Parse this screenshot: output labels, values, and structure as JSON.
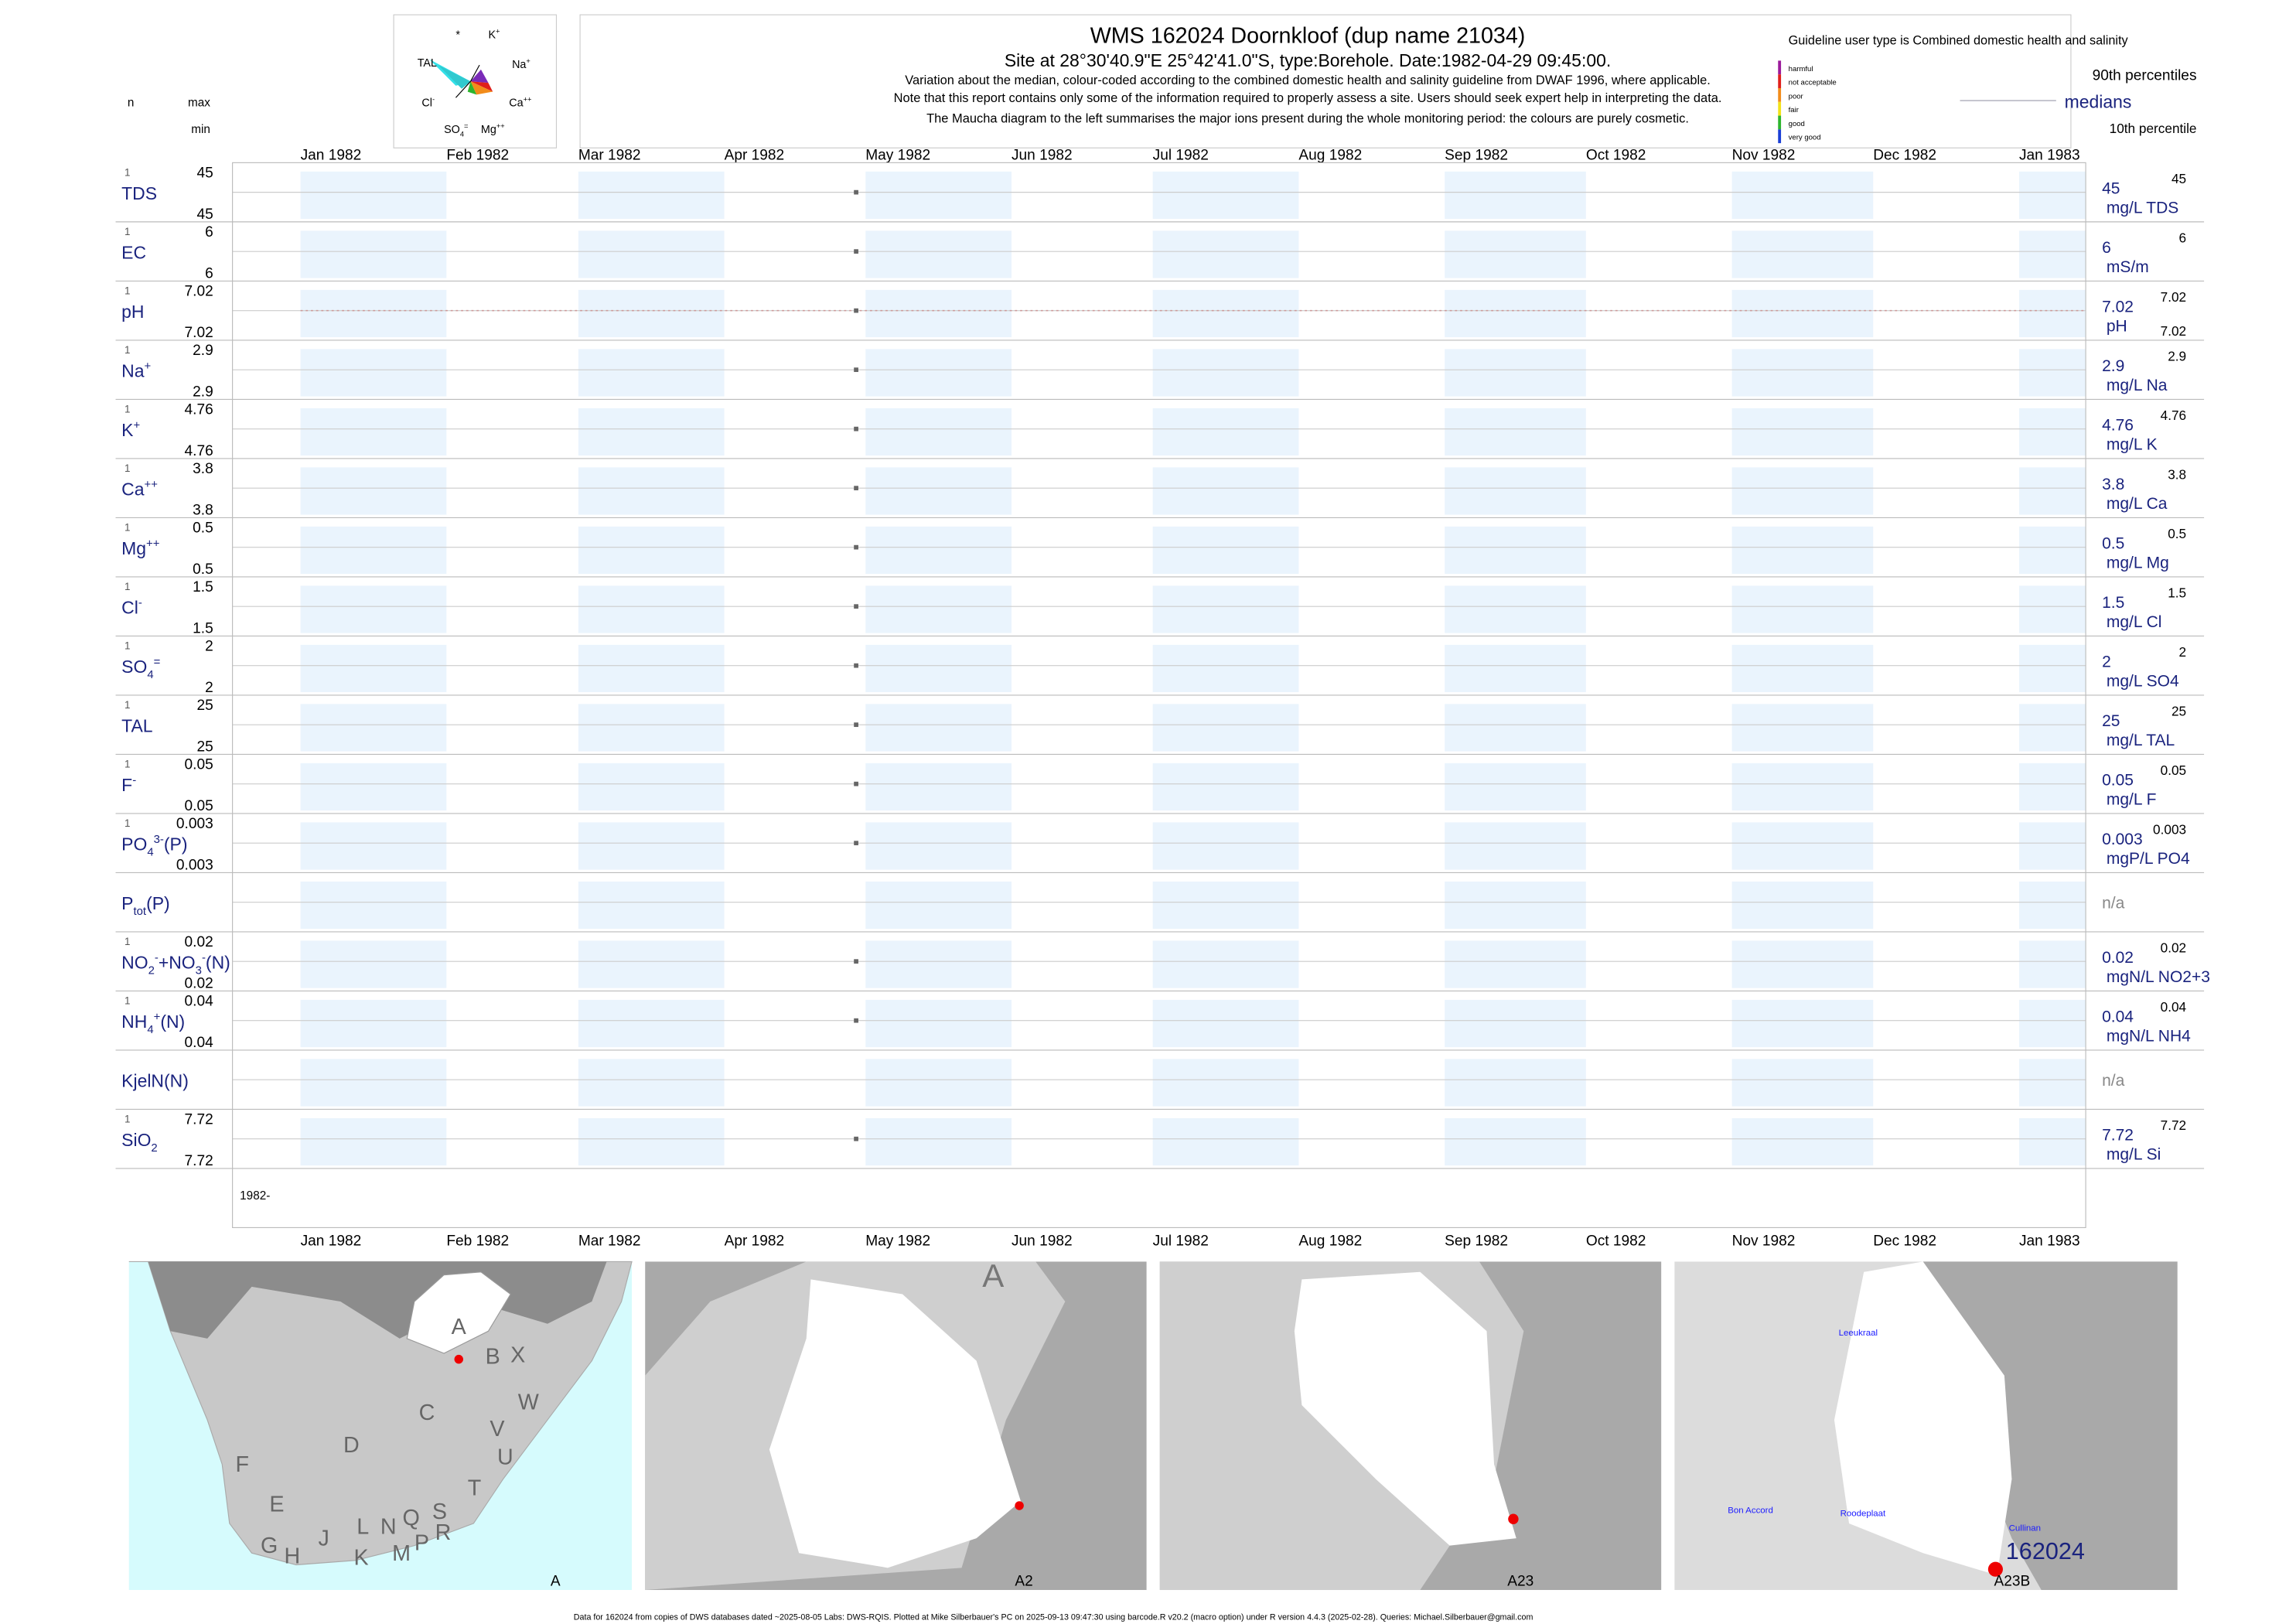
{
  "header": {
    "title": "WMS 162024  Doornkloof (dup name 21034)",
    "subtitle": "Site at 28°30'40.9\"E 25°42'41.0\"S, type:Borehole. Date:1982-04-29 09:45:00.",
    "notes": [
      "Variation about the median,  colour-coded according to the combined domestic health and salinity guideline from DWAF 1996, where applicable.",
      "Note that this report contains only some of the information required to properly assess a site. Users should seek expert help in interpreting the data.",
      "The Maucha diagram to the left summarises the major ions present during the whole monitoring period: the colours are purely cosmetic."
    ]
  },
  "sample_date": "1982-04-29",
  "maucha": {
    "labels": [
      [
        {
          "text": "*"
        }
      ],
      [
        {
          "text": "K"
        },
        {
          "sup": "+"
        }
      ],
      [
        {
          "text": "TAL"
        }
      ],
      [
        {
          "text": "Na"
        },
        {
          "sup": "+"
        }
      ],
      [
        {
          "text": "Cl"
        },
        {
          "sup": "-"
        }
      ],
      [
        {
          "text": "Ca"
        },
        {
          "sup": "++"
        }
      ],
      [
        {
          "text": "SO"
        },
        {
          "sub": "4"
        },
        {
          "sup": "="
        }
      ],
      [
        {
          "text": "Mg"
        },
        {
          "sup": "++"
        }
      ]
    ]
  },
  "guideline": {
    "title": "Guideline user type is Combined domestic health and salinity",
    "classes": [
      {
        "label": "harmful",
        "color": "#9b1b9b"
      },
      {
        "label": "not acceptable",
        "color": "#e0201b"
      },
      {
        "label": "poor",
        "color": "#f28c1a"
      },
      {
        "label": "fair",
        "color": "#f2e21a"
      },
      {
        "label": "good",
        "color": "#2db52d"
      },
      {
        "label": "very good",
        "color": "#1a3fd6"
      }
    ],
    "p90": "90th percentiles",
    "medians": "medians",
    "p10": "10th percentile"
  },
  "column_heads": {
    "n": "n",
    "max": "max",
    "min": "min"
  },
  "months": [
    "Jan 1982",
    "Feb 1982",
    "Mar 1982",
    "Apr 1982",
    "May 1982",
    "Jun 1982",
    "Jul 1982",
    "Aug 1982",
    "Sep 1982",
    "Oct 1982",
    "Nov 1982",
    "Dec 1982",
    "Jan 1983"
  ],
  "year_label": "1982-",
  "parameters": [
    {
      "label": [
        {
          "text": "TDS"
        }
      ],
      "n": 1,
      "max": 45,
      "min": 45,
      "value": 45,
      "median": 45,
      "p90": 45,
      "unit": "mg/L TDS"
    },
    {
      "label": [
        {
          "text": "EC"
        }
      ],
      "n": 1,
      "max": 6,
      "min": 6,
      "value": 6,
      "median": 6,
      "p90": 6,
      "unit": "mS/m"
    },
    {
      "label": [
        {
          "text": "pH"
        }
      ],
      "n": 1,
      "max": 7.02,
      "min": 7.02,
      "value": 7.02,
      "median": 7.02,
      "p90": 7.02,
      "p10": 7.02,
      "unit": "pH"
    },
    {
      "label": [
        {
          "text": "Na"
        },
        {
          "sup": "+"
        }
      ],
      "n": 1,
      "max": 2.9,
      "min": 2.9,
      "value": 2.9,
      "median": 2.9,
      "p90": 2.9,
      "unit": "mg/L Na"
    },
    {
      "label": [
        {
          "text": "K"
        },
        {
          "sup": "+"
        }
      ],
      "n": 1,
      "max": 4.76,
      "min": 4.76,
      "value": 4.76,
      "median": 4.76,
      "p90": 4.76,
      "unit": "mg/L K"
    },
    {
      "label": [
        {
          "text": "Ca"
        },
        {
          "sup": "++"
        }
      ],
      "n": 1,
      "max": 3.8,
      "min": 3.8,
      "value": 3.8,
      "median": 3.8,
      "p90": 3.8,
      "unit": "mg/L Ca"
    },
    {
      "label": [
        {
          "text": "Mg"
        },
        {
          "sup": "++"
        }
      ],
      "n": 1,
      "max": 0.5,
      "min": 0.5,
      "value": 0.5,
      "median": 0.5,
      "p90": 0.5,
      "unit": "mg/L Mg"
    },
    {
      "label": [
        {
          "text": "Cl"
        },
        {
          "sup": "-"
        }
      ],
      "n": 1,
      "max": 1.5,
      "min": 1.5,
      "value": 1.5,
      "median": 1.5,
      "p90": 1.5,
      "unit": "mg/L Cl"
    },
    {
      "label": [
        {
          "text": "SO"
        },
        {
          "sub": "4"
        },
        {
          "sup": "="
        }
      ],
      "n": 1,
      "max": 2,
      "min": 2,
      "value": 2,
      "median": 2,
      "p90": 2,
      "unit": "mg/L SO4"
    },
    {
      "label": [
        {
          "text": "TAL"
        }
      ],
      "n": 1,
      "max": 25,
      "min": 25,
      "value": 25,
      "median": 25,
      "p90": 25,
      "unit": "mg/L TAL"
    },
    {
      "label": [
        {
          "text": "F"
        },
        {
          "sup": "-"
        }
      ],
      "n": 1,
      "max": 0.05,
      "min": 0.05,
      "value": 0.05,
      "median": 0.05,
      "p90": 0.05,
      "unit": "mg/L F"
    },
    {
      "label": [
        {
          "text": "PO"
        },
        {
          "sub": "4"
        },
        {
          "sup": "3-"
        },
        {
          "text": "(P)"
        }
      ],
      "n": 1,
      "max": 0.003,
      "min": 0.003,
      "value": 0.003,
      "median": 0.003,
      "p90": 0.003,
      "unit": "mgP/L PO4"
    },
    {
      "label": [
        {
          "text": "P"
        },
        {
          "sub": "tot"
        },
        {
          "text": "(P)"
        }
      ],
      "median_label": "n/a"
    },
    {
      "label": [
        {
          "text": "NO"
        },
        {
          "sub": "2"
        },
        {
          "sup": "-"
        },
        {
          "text": "+NO"
        },
        {
          "sub": "3"
        },
        {
          "sup": "-"
        },
        {
          "text": "(N)"
        }
      ],
      "n": 1,
      "max": 0.02,
      "min": 0.02,
      "value": 0.02,
      "median": 0.02,
      "p90": 0.02,
      "unit": "mgN/L NO2+3"
    },
    {
      "label": [
        {
          "text": "NH"
        },
        {
          "sub": "4"
        },
        {
          "sup": "+"
        },
        {
          "text": "(N)"
        }
      ],
      "n": 1,
      "max": 0.04,
      "min": 0.04,
      "value": 0.04,
      "median": 0.04,
      "p90": 0.04,
      "unit": "mgN/L NH4"
    },
    {
      "label": [
        {
          "text": "KjelN(N)"
        }
      ],
      "median_label": "n/a"
    },
    {
      "label": [
        {
          "text": "SiO"
        },
        {
          "sub": "2"
        }
      ],
      "n": 1,
      "max": 7.72,
      "min": 7.72,
      "value": 7.72,
      "median": 7.72,
      "p90": 7.72,
      "unit": "mg/L Si"
    }
  ],
  "maps": [
    {
      "corner": "A",
      "labels": [
        "A",
        "B",
        "X",
        "C",
        "W",
        "D",
        "V",
        "U",
        "F",
        "T",
        "E",
        "S",
        "R",
        "L",
        "N",
        "Q",
        "J",
        "G",
        "H",
        "K",
        "M",
        "P"
      ]
    },
    {
      "corner": "A2",
      "labels": [
        "A"
      ]
    },
    {
      "corner": "A23",
      "labels": []
    },
    {
      "corner": "A23B",
      "labels": [
        "Leeukraal",
        "Bon Accord",
        "Roodeplaat",
        "Cullinan",
        "162024"
      ]
    }
  ],
  "footer": "Data for 162024 from copies of DWS databases dated ~2025-08-05 Labs: DWS-RQIS. Plotted at Mike Silberbauer's PC on 2025-09-13 09:47:30 using barcode.R v20.2 (macro option) under R version 4.4.3 (2025-02-28). Queries: Michael.Silberbauer@gmail.com"
}
